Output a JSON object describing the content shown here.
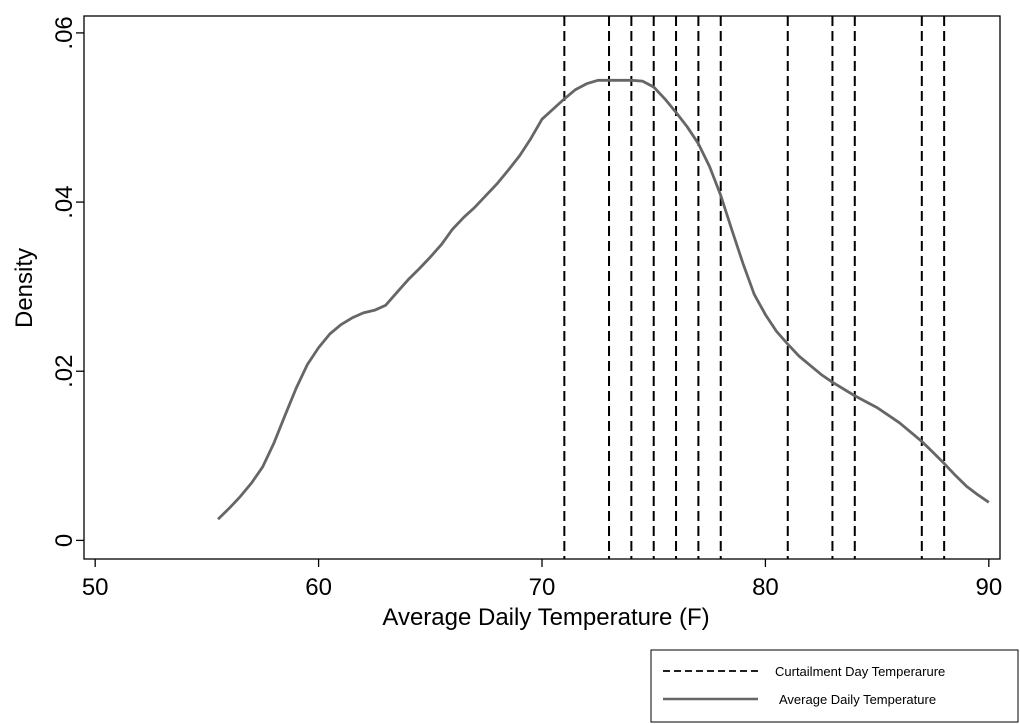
{
  "chart_data": {
    "type": "line",
    "title": "",
    "xlabel": "Average Daily Temperature (F)",
    "ylabel": "Density",
    "xlim": [
      49.5,
      90.5
    ],
    "ylim": [
      -0.0022,
      0.062
    ],
    "x_ticks": [
      50,
      60,
      70,
      80,
      90
    ],
    "x_tick_labels": [
      "50",
      "60",
      "70",
      "80",
      "90"
    ],
    "y_ticks": [
      0,
      0.02,
      0.04,
      0.06
    ],
    "y_tick_labels": [
      "0",
      ".02",
      ".04",
      ".06"
    ],
    "grid": false,
    "legend_position": "bottom-right",
    "series": [
      {
        "name": "Average Daily Temperature",
        "style": "solid",
        "color": "#666666",
        "x": [
          55.5,
          56.0,
          56.5,
          57.0,
          57.5,
          58.0,
          58.5,
          59.0,
          59.5,
          60.0,
          60.5,
          61.0,
          61.5,
          62.0,
          62.5,
          63.0,
          63.5,
          64.0,
          64.5,
          65.0,
          65.5,
          66.0,
          66.5,
          67.0,
          67.5,
          68.0,
          68.5,
          69.0,
          69.5,
          70.0,
          70.5,
          71.0,
          71.5,
          72.0,
          72.5,
          73.0,
          73.5,
          74.0,
          74.5,
          75.0,
          75.5,
          76.0,
          76.5,
          77.0,
          77.5,
          78.0,
          78.5,
          79.0,
          79.5,
          80.0,
          80.5,
          81.0,
          81.5,
          82.0,
          82.5,
          83.0,
          83.5,
          84.0,
          84.5,
          85.0,
          85.5,
          86.0,
          86.5,
          87.0,
          87.5,
          88.0,
          88.5,
          89.0,
          89.5,
          90.0
        ],
        "y": [
          0.0025,
          0.0038,
          0.0052,
          0.0068,
          0.0087,
          0.0115,
          0.0148,
          0.018,
          0.0208,
          0.0228,
          0.0244,
          0.0255,
          0.0263,
          0.0269,
          0.0272,
          0.0278,
          0.0293,
          0.0308,
          0.0321,
          0.0335,
          0.035,
          0.0368,
          0.0382,
          0.0394,
          0.0408,
          0.0422,
          0.0438,
          0.0455,
          0.0475,
          0.0498,
          0.051,
          0.0522,
          0.0533,
          0.054,
          0.0544,
          0.0544,
          0.0544,
          0.0544,
          0.0543,
          0.0536,
          0.0522,
          0.0506,
          0.0489,
          0.0469,
          0.0442,
          0.0408,
          0.0367,
          0.0327,
          0.0291,
          0.0267,
          0.0247,
          0.0232,
          0.0218,
          0.0207,
          0.0196,
          0.0187,
          0.0179,
          0.0171,
          0.0164,
          0.0157,
          0.0148,
          0.0139,
          0.0128,
          0.0117,
          0.0104,
          0.0091,
          0.0077,
          0.0064,
          0.0054,
          0.0045
        ]
      },
      {
        "name": "Curtailment Day Temperarure",
        "style": "dashed",
        "color": "#000000",
        "vlines": [
          71,
          73,
          74,
          75,
          76,
          77,
          78,
          81,
          83,
          84,
          87,
          88
        ]
      }
    ]
  },
  "legend": {
    "items": [
      {
        "label": "Curtailment Day Temperarure",
        "style": "dashed",
        "color": "#000000"
      },
      {
        "label": "Average Daily Temperature",
        "style": "solid",
        "color": "#666666"
      }
    ]
  }
}
